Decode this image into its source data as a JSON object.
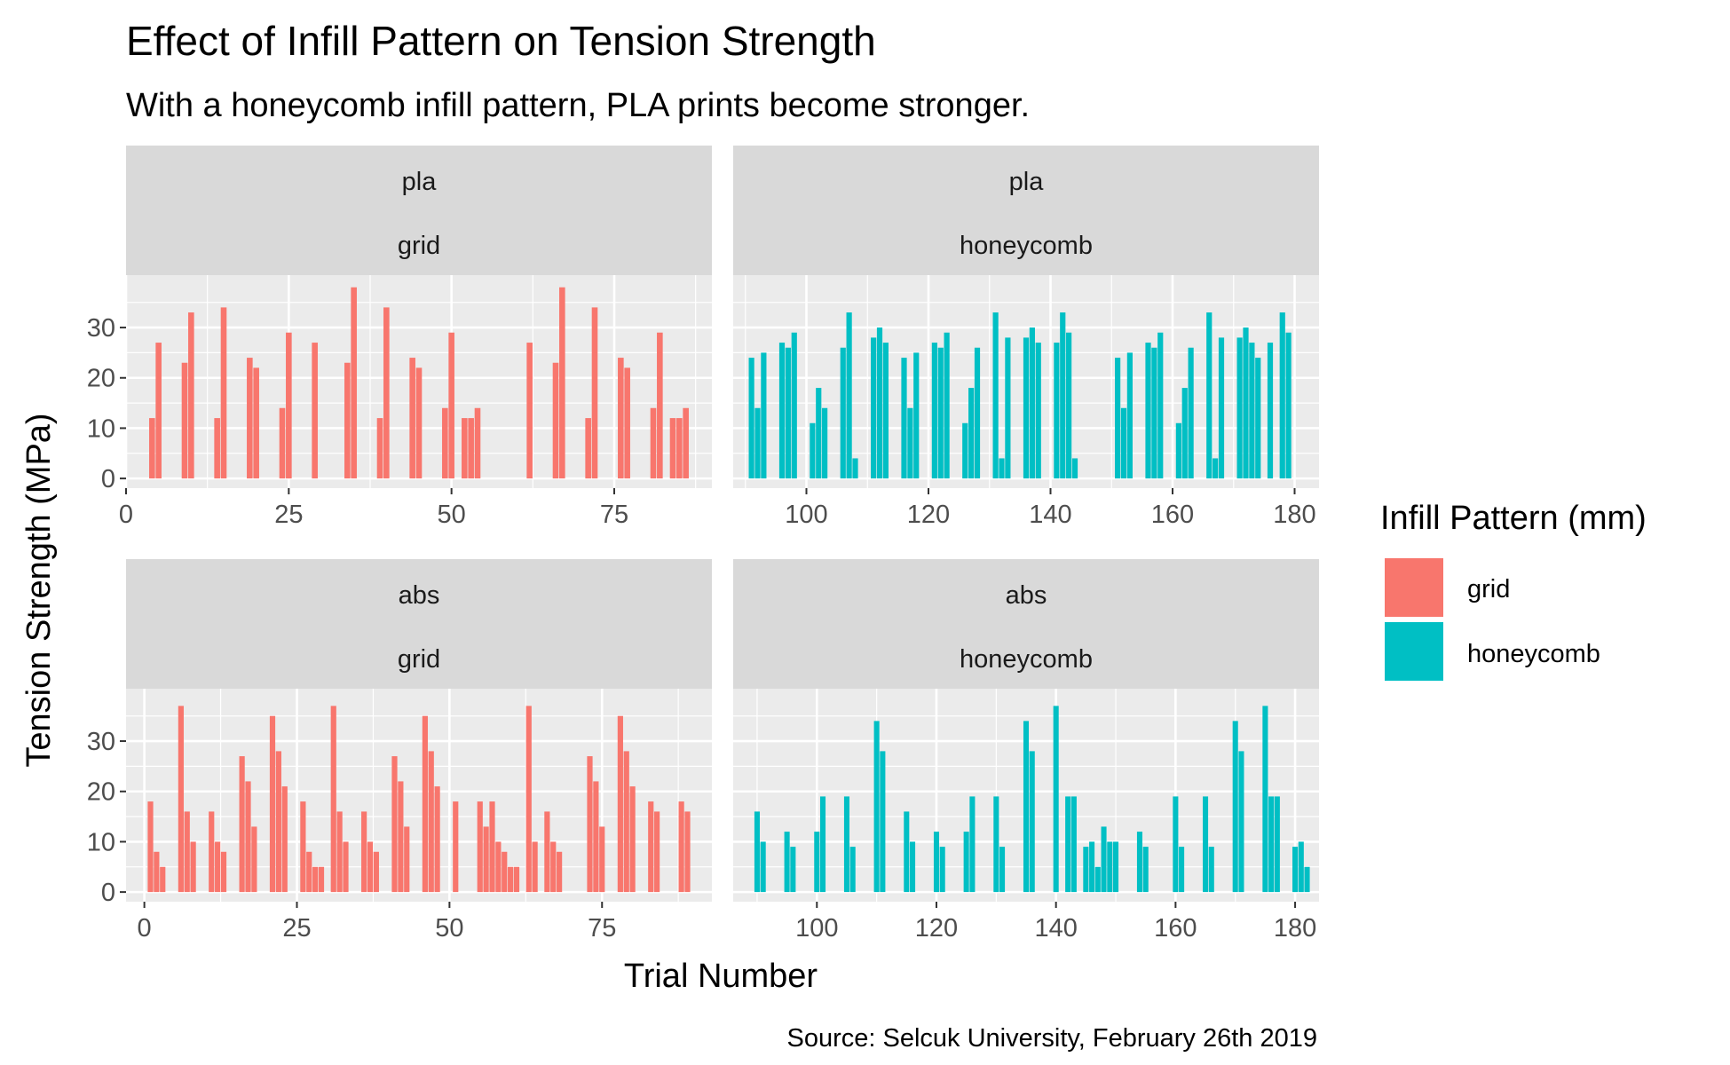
{
  "title": "Effect of Infill Pattern on Tension Strength",
  "subtitle": "With a honeycomb infill pattern, PLA prints become stronger.",
  "caption": "Source: Selcuk University, February 26th 2019",
  "colors": {
    "grid": "#F8766D",
    "honeycomb": "#00BFC4",
    "panel_bg": "#EBEBEB",
    "strip_bg": "#D9D9D9",
    "gridline": "#FFFFFF",
    "tick_text": "#4D4D4D"
  },
  "chart_data": {
    "type": "bar",
    "xlabel": "Trial Number",
    "ylabel": "Tension Strength (MPa)",
    "ylim": [
      0,
      38.5
    ],
    "yticks": [
      0,
      10,
      20,
      30
    ],
    "grid": true,
    "legend": {
      "title": "Infill Pattern (mm)",
      "position": "right",
      "entries": [
        {
          "name": "grid",
          "color": "#F8766D"
        },
        {
          "name": "honeycomb",
          "color": "#00BFC4"
        }
      ]
    },
    "panels": [
      {
        "material": "pla",
        "infill": "grid",
        "color": "#F8766D",
        "xlim": [
          0,
          90
        ],
        "xticks": [
          0,
          25,
          50,
          75
        ],
        "x": [
          4,
          5,
          9,
          10,
          14,
          15,
          19,
          20,
          24,
          25,
          29,
          34,
          35,
          39,
          40,
          44,
          45,
          49,
          50,
          52,
          53,
          54,
          62,
          66,
          67,
          71,
          72,
          76,
          77,
          81,
          82,
          84,
          85,
          86
        ],
        "values": [
          12,
          27,
          23,
          33,
          12,
          34,
          24,
          22,
          14,
          29,
          27,
          23,
          38,
          12,
          34,
          24,
          22,
          14,
          29,
          12,
          12,
          14,
          27,
          23,
          38,
          12,
          34,
          24,
          22,
          14,
          29,
          12,
          12,
          14
        ]
      },
      {
        "material": "pla",
        "infill": "honeycomb",
        "color": "#00BFC4",
        "xlim": [
          88,
          184
        ],
        "xticks": [
          100,
          120,
          140,
          160,
          180
        ],
        "x": [
          91,
          92,
          93,
          96,
          97,
          98,
          101,
          102,
          103,
          106,
          107,
          108,
          111,
          112,
          113,
          116,
          117,
          118,
          121,
          122,
          123,
          126,
          127,
          128,
          131,
          132,
          133,
          136,
          137,
          138,
          141,
          142,
          143,
          144,
          151,
          152,
          153,
          156,
          157,
          158,
          161,
          162,
          163,
          166,
          167,
          168,
          171,
          172,
          173,
          174,
          176,
          178,
          179
        ],
        "values": [
          24,
          14,
          25,
          27,
          26,
          29,
          11,
          18,
          14,
          26,
          33,
          4,
          28,
          30,
          27,
          24,
          14,
          25,
          27,
          26,
          29,
          11,
          18,
          26,
          33,
          4,
          28,
          28,
          30,
          27,
          27,
          33,
          29,
          4,
          24,
          14,
          25,
          27,
          26,
          29,
          11,
          18,
          26,
          33,
          4,
          28,
          28,
          30,
          27,
          24,
          27,
          33,
          29
        ]
      },
      {
        "material": "abs",
        "infill": "grid",
        "color": "#F8766D",
        "xlim": [
          -3,
          93
        ],
        "xticks": [
          0,
          25,
          50,
          75
        ],
        "x": [
          1,
          2,
          3,
          6,
          7,
          8,
          11,
          12,
          13,
          16,
          17,
          18,
          21,
          22,
          23,
          26,
          27,
          28,
          29,
          31,
          32,
          33,
          36,
          37,
          38,
          41,
          42,
          43,
          46,
          47,
          48,
          51,
          55,
          56,
          57,
          58,
          59,
          60,
          61,
          63,
          64,
          66,
          67,
          68,
          73,
          74,
          75,
          78,
          79,
          80,
          83,
          84,
          88,
          89
        ],
        "values": [
          18,
          8,
          5,
          37,
          16,
          10,
          16,
          10,
          8,
          27,
          22,
          13,
          35,
          28,
          21,
          18,
          8,
          5,
          5,
          37,
          16,
          10,
          16,
          10,
          8,
          27,
          22,
          13,
          35,
          28,
          21,
          18,
          18,
          13,
          18,
          10,
          8,
          5,
          5,
          37,
          10,
          16,
          10,
          8,
          27,
          22,
          13,
          35,
          28,
          21,
          18,
          16,
          18,
          16
        ]
      },
      {
        "material": "abs",
        "infill": "honeycomb",
        "color": "#00BFC4",
        "xlim": [
          86,
          184
        ],
        "xticks": [
          100,
          120,
          140,
          160,
          180
        ],
        "x": [
          90,
          91,
          95,
          96,
          100,
          101,
          105,
          106,
          110,
          111,
          115,
          116,
          120,
          121,
          125,
          126,
          130,
          131,
          135,
          136,
          140,
          142,
          143,
          145,
          146,
          147,
          148,
          149,
          150,
          154,
          155,
          160,
          161,
          165,
          166,
          170,
          171,
          175,
          176,
          177,
          180,
          181,
          182
        ],
        "values": [
          16,
          10,
          12,
          9,
          12,
          19,
          19,
          9,
          34,
          28,
          16,
          10,
          12,
          9,
          12,
          19,
          19,
          9,
          34,
          28,
          37,
          19,
          19,
          9,
          10,
          5,
          13,
          10,
          10,
          12,
          9,
          19,
          9,
          19,
          9,
          34,
          28,
          37,
          19,
          19,
          9,
          10,
          5
        ]
      }
    ]
  }
}
